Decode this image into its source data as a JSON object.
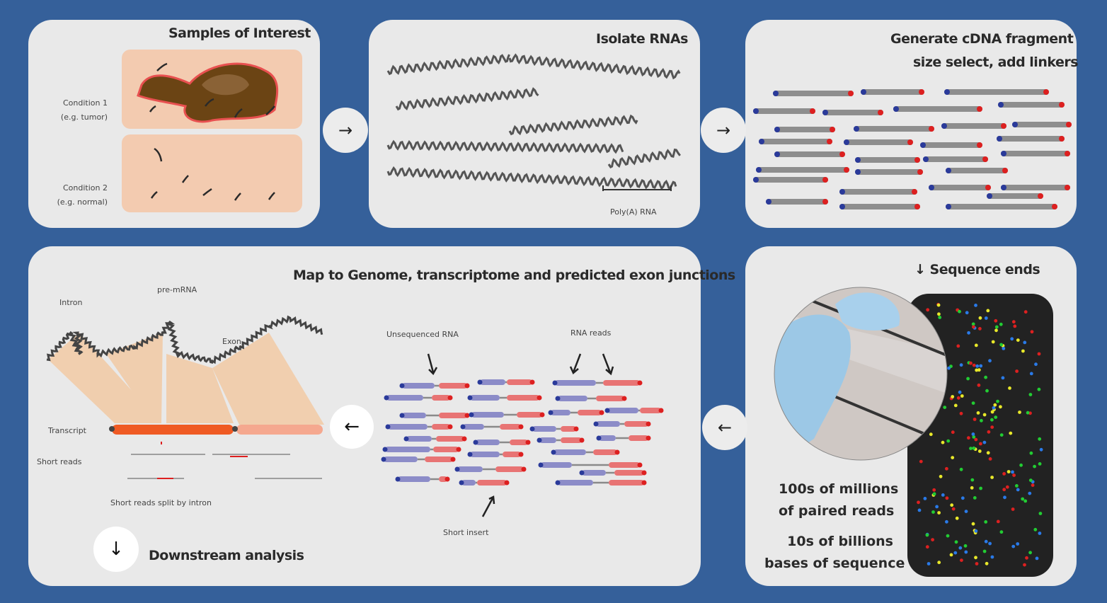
{
  "panels": {
    "samples": {
      "title": "Samples of Interest",
      "cond1": [
        "Condition 1",
        "(e.g. tumor)"
      ],
      "cond2": [
        "Condition 2",
        "(e.g. normal)"
      ]
    },
    "isolate": {
      "title": "Isolate RNAs",
      "scale": "Poly(A) RNA"
    },
    "cdna": {
      "title_line1": "Generate cDNA fragment",
      "title_line2": "size select, add linkers"
    },
    "sequence": {
      "title": "Sequence ends",
      "reads_line1": "100s of millions",
      "reads_line2": "of paired reads",
      "bases_line1": "10s of billions",
      "bases_line2": "bases of sequence"
    },
    "map": {
      "title": "Map to Genome, transcriptome and predicted exon junctions",
      "intron": "Intron",
      "premrna": "pre-mRNA",
      "exon": "Exon",
      "transcript": "Transcript",
      "short_reads": "Short reads",
      "spliced": "Short reads split by intron",
      "unsequenced": "Unsequenced RNA",
      "rna_reads": "RNA reads",
      "short_insert": "Short insert",
      "downstream": "Downstream analysis"
    }
  },
  "arrows": {
    "right": "→",
    "left": "←",
    "down": "↓"
  },
  "colors": {
    "background": "#35609a",
    "panel": "#e9e9e9",
    "read_blue": "#8c8cc8",
    "read_red": "#e87474",
    "dot_blue": "#2a3a9a",
    "dot_red": "#dd2020",
    "transcript": "#ef5a23"
  }
}
